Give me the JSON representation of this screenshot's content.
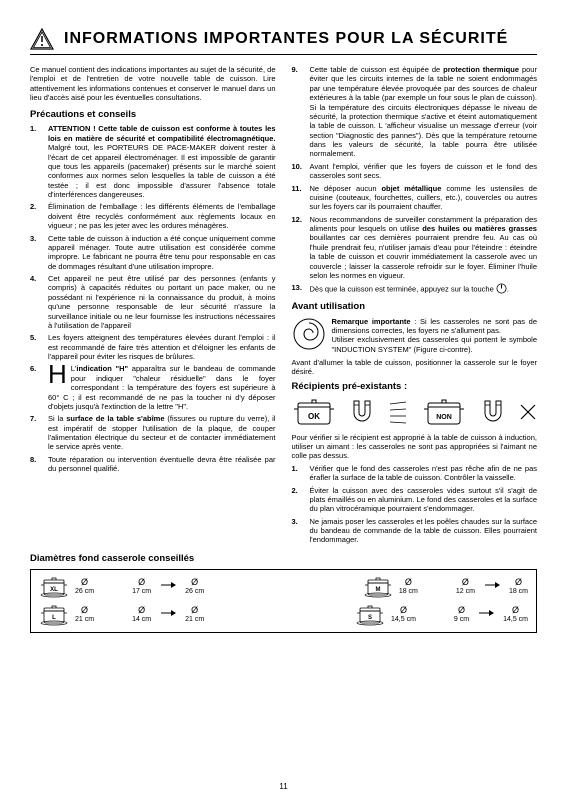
{
  "header": {
    "title": "INFORMATIONS IMPORTANTES POUR LA SÉCURITÉ"
  },
  "intro": "Ce manuel contient des indications importantes au sujet de la sécurité, de l'emploi et de l'entretien de votre nouvelle table de cuisson. Lire attentivement les informations contenues et conserver le manuel dans un lieu d'accès aisé pour les éventuelles consultations.",
  "precautions_heading": "Précautions et conseils",
  "items": [
    "<b>ATTENTION ! Cette table de cuisson est conforme à toutes les lois en matière de sécurité et compatibilité électromagnétique.</b> Malgré tout, les PORTEURS DE PACE-MAKER doivent rester à l'écart de cet appareil électroménager. Il est impossible de garantir que tous les appareils (pacemaker) présents sur le marché soient conformes aux normes selon lesquelles la table de cuisson a été testée ; il est donc impossible d'assurer l'absence totale d'interférences dangereuses.",
    "Élimination de l'emballage : les différents éléments de l'emballage doivent être recyclés conformément aux règlements locaux en vigueur ; ne pas les jeter avec les ordures ménagères.",
    "Cette table de cuisson à induction a été conçue uniquement comme appareil ménager. Toute autre utilisation est considérée comme impropre. Le fabricant ne pourra être tenu pour responsable en cas de dommages résultant d'une utilisation impropre.",
    "Cet appareil ne peut être utilisé par des personnes (enfants y compris) à capacités réduites ou portant un pace maker, ou ne possédant ni l'expérience ni la connaissance du produit, à moins qu'une personne responsable de leur sécurité n'assure la surveillance initiale ou ne leur fournisse les instructions nécessaires à l'utilisation de l'appareil",
    "Les foyers atteignent des températures élevées durant l'emploi : il est recommandé de faire très attention et d'éloigner les enfants de l'appareil pour éviter les risques de brûlures.",
    "L'<b>indication \"H\"</b> apparaîtra sur le bandeau de commande pour indiquer \"chaleur résiduelle\" dans le foyer correspondant : la température des foyers est supérieure à 60° C ; il est recommandé de ne pas la toucher ni d'y déposer d'objets jusqu'à l'extinction de la lettre \"H\".",
    "Si la <b>surface de la table s'abîme</b> (fissures ou rupture du verre), il est impératif de stopper l'utilisation de la plaque, de couper l'alimentation électrique du secteur et de contacter immédiatement le service après vente.",
    "Toute réparation ou intervention éventuelle devra être réalisée par du personnel qualifié.",
    "Cette table de cuisson est équipée de <b>protection thermique</b> pour éviter que les circuits internes de la table ne soient endommagés par une température élevée provoquée par des sources de chaleur extérieures à la table (par exemple un four sous le plan de cuisson). Si la température des circuits électroniques dépasse le niveau de sécurité, la protection thermique s'active et éteint automatiquement la table de cuisson. L 'afficheur visualise un message d'erreur (voir section \"Diagnostic des pannes\"). Dès que la température retourne dans les valeurs de sécurité, la table pourra être utilisée normalement.",
    "Avant l'emploi, vérifier que les foyers de cuisson et le fond des casseroles sont secs.",
    "Ne déposer aucun <b>objet métallique</b> comme les ustensiles de cuisine (couteaux, fourchettes, cuillers, etc.), couvercles ou autres sur les foyers car ils pourraient chauffer.",
    "Nous recommandons de surveiller constamment la préparation des aliments pour lesquels on utilise <b>des huiles ou matières grasses</b> bouillantes car ces dernières pourraient prendre feu. Au cas où l'huile prendrait feu, n'utiliser jamais d'eau pour l'éteindre : éteindre la table de cuisson et couvrir immédiatement la casserole avec un couvercle ; laisser la casserole refroidir sur le foyer. Éliminer l'huile selon les normes en vigueur.",
    "Dès que la cuisson est terminée, appuyez sur la touche"
  ],
  "avant_heading": "Avant utilisation",
  "remark": "<b>Remarque importante</b> : Si les casseroles ne sont pas de dimensions correctes, les foyers ne s'allument pas.<br>Utiliser exclusivement des casseroles qui portent le symbole \"INDUCTION SYSTEM\" (Figure ci-contre).",
  "pre_position": "Avant d'allumer la table de cuisson, positionner la casserole sur le foyer désiré.",
  "recipients_heading": "Récipients pré-existants :",
  "ok_label": "OK",
  "non_label": "NON",
  "verify_text": "Pour vérifier si le récipient est approprié à la table de cuisson à induction, utiliser un aimant : les casseroles ne sont pas appropriées si l'aimant ne colle pas dessus.",
  "verify_list": [
    "Vérifier que le fond des casseroles n'est pas rêche afin de ne pas érafler la surface de la table de cuisson. Contrôler la vaisselle.",
    "Éviter la cuisson avec des casseroles vides surtout s'il s'agit de plats émaillés ou en aluminium. Le fond des casseroles et la surface du plan vitrocéramique pourraient s'endommager.",
    "Ne jamais poser les casseroles et les poêles chaudes sur la surface du bandeau de commande de la table de cuisson. Elles pourraient l'endommager."
  ],
  "diam_heading": "Diamètres fond casserole conseillés",
  "zones": {
    "xl": {
      "label": "XL",
      "big": "26 cm",
      "range_from": "17 cm",
      "range_to": "26 cm"
    },
    "m": {
      "label": "M",
      "big": "18 cm",
      "range_from": "12 cm",
      "range_to": "18 cm"
    },
    "l": {
      "label": "L",
      "big": "21 cm",
      "range_from": "14 cm",
      "range_to": "21 cm"
    },
    "s": {
      "label": "S",
      "big": "14,5 cm",
      "range_from": "9 cm",
      "range_to": "14,5 cm"
    }
  },
  "page_number": "11",
  "icons": {
    "warning": "warning-triangle",
    "induction": "induction-coil",
    "pot": "pot",
    "magnet": "horseshoe-magnet",
    "diameter": "Ø",
    "arrow": "→",
    "power": "power-symbol"
  },
  "colors": {
    "fg": "#000000",
    "bg": "#ffffff"
  }
}
